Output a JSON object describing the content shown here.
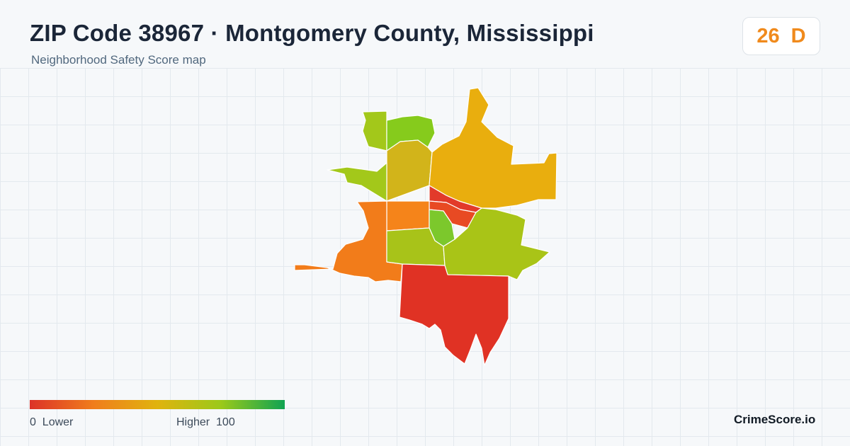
{
  "header": {
    "title": "ZIP Code 38967 · Montgomery County, Mississippi",
    "subtitle": "Neighborhood Safety Score map"
  },
  "score_badge": {
    "score": "26",
    "grade": "D",
    "color": "#f08a1c"
  },
  "legend": {
    "min_value": "0",
    "min_label": "Lower",
    "max_label": "Higher",
    "max_value": "100",
    "colors": [
      "#dc3228",
      "#f07d1c",
      "#e0b30e",
      "#9bc91a",
      "#10a352"
    ]
  },
  "map": {
    "regions": [
      {
        "name": "north-west",
        "color": "#a3c81a"
      },
      {
        "name": "north",
        "color": "#86cb1c"
      },
      {
        "name": "north-central",
        "color": "#d2b41a"
      },
      {
        "name": "west-spur",
        "color": "#a3c81a"
      },
      {
        "name": "north-east",
        "color": "#e9ae0e"
      },
      {
        "name": "central-north",
        "color": "#e23a2a"
      },
      {
        "name": "central",
        "color": "#e84a23"
      },
      {
        "name": "central-west",
        "color": "#f5841a"
      },
      {
        "name": "central-green",
        "color": "#7cc82c"
      },
      {
        "name": "south-west",
        "color": "#f27c1a"
      },
      {
        "name": "central-south",
        "color": "#a8c319"
      },
      {
        "name": "east",
        "color": "#a9c417"
      },
      {
        "name": "south",
        "color": "#e03224"
      }
    ]
  },
  "brand": {
    "label": "CrimeScore.io"
  }
}
